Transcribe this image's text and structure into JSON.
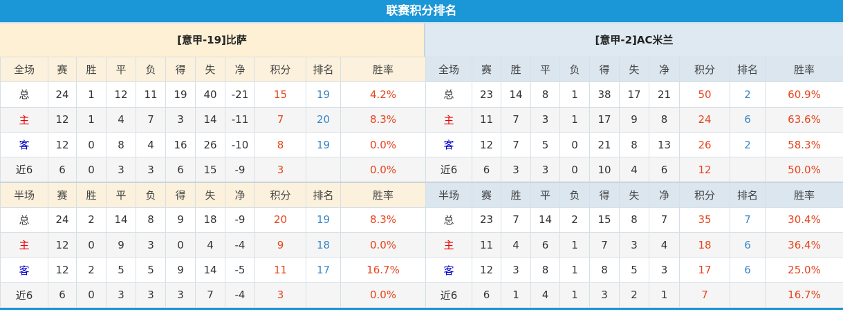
{
  "title": "联赛积分排名",
  "colors": {
    "accent": "#1b96d6",
    "points": "#e8431c",
    "rank": "#3a86c8",
    "home": "#ee0000",
    "away": "#0000cc"
  },
  "columns": [
    "赛",
    "胜",
    "平",
    "负",
    "得",
    "失",
    "净",
    "积分",
    "排名",
    "胜率"
  ],
  "teams": [
    {
      "name": "[意甲-19]比萨",
      "sections": [
        {
          "label": "全场",
          "rows": [
            [
              "总",
              "24",
              "1",
              "12",
              "11",
              "19",
              "40",
              "-21",
              "15",
              "19",
              "4.2%"
            ],
            [
              "主",
              "12",
              "1",
              "4",
              "7",
              "3",
              "14",
              "-11",
              "7",
              "20",
              "8.3%"
            ],
            [
              "客",
              "12",
              "0",
              "8",
              "4",
              "16",
              "26",
              "-10",
              "8",
              "19",
              "0.0%"
            ],
            [
              "近6",
              "6",
              "0",
              "3",
              "3",
              "6",
              "15",
              "-9",
              "3",
              "",
              "0.0%"
            ]
          ]
        },
        {
          "label": "半场",
          "rows": [
            [
              "总",
              "24",
              "2",
              "14",
              "8",
              "9",
              "18",
              "-9",
              "20",
              "19",
              "8.3%"
            ],
            [
              "主",
              "12",
              "0",
              "9",
              "3",
              "0",
              "4",
              "-4",
              "9",
              "18",
              "0.0%"
            ],
            [
              "客",
              "12",
              "2",
              "5",
              "5",
              "9",
              "14",
              "-5",
              "11",
              "17",
              "16.7%"
            ],
            [
              "近6",
              "6",
              "0",
              "3",
              "3",
              "3",
              "7",
              "-4",
              "3",
              "",
              "0.0%"
            ]
          ]
        }
      ]
    },
    {
      "name": "[意甲-2]AC米兰",
      "sections": [
        {
          "label": "全场",
          "rows": [
            [
              "总",
              "23",
              "14",
              "8",
              "1",
              "38",
              "17",
              "21",
              "50",
              "2",
              "60.9%"
            ],
            [
              "主",
              "11",
              "7",
              "3",
              "1",
              "17",
              "9",
              "8",
              "24",
              "6",
              "63.6%"
            ],
            [
              "客",
              "12",
              "7",
              "5",
              "0",
              "21",
              "8",
              "13",
              "26",
              "2",
              "58.3%"
            ],
            [
              "近6",
              "6",
              "3",
              "3",
              "0",
              "10",
              "4",
              "6",
              "12",
              "",
              "50.0%"
            ]
          ]
        },
        {
          "label": "半场",
          "rows": [
            [
              "总",
              "23",
              "7",
              "14",
              "2",
              "15",
              "8",
              "7",
              "35",
              "7",
              "30.4%"
            ],
            [
              "主",
              "11",
              "4",
              "6",
              "1",
              "7",
              "3",
              "4",
              "18",
              "6",
              "36.4%"
            ],
            [
              "客",
              "12",
              "3",
              "8",
              "1",
              "8",
              "5",
              "3",
              "17",
              "6",
              "25.0%"
            ],
            [
              "近6",
              "6",
              "1",
              "4",
              "1",
              "3",
              "2",
              "1",
              "7",
              "",
              "16.7%"
            ]
          ]
        }
      ]
    }
  ]
}
